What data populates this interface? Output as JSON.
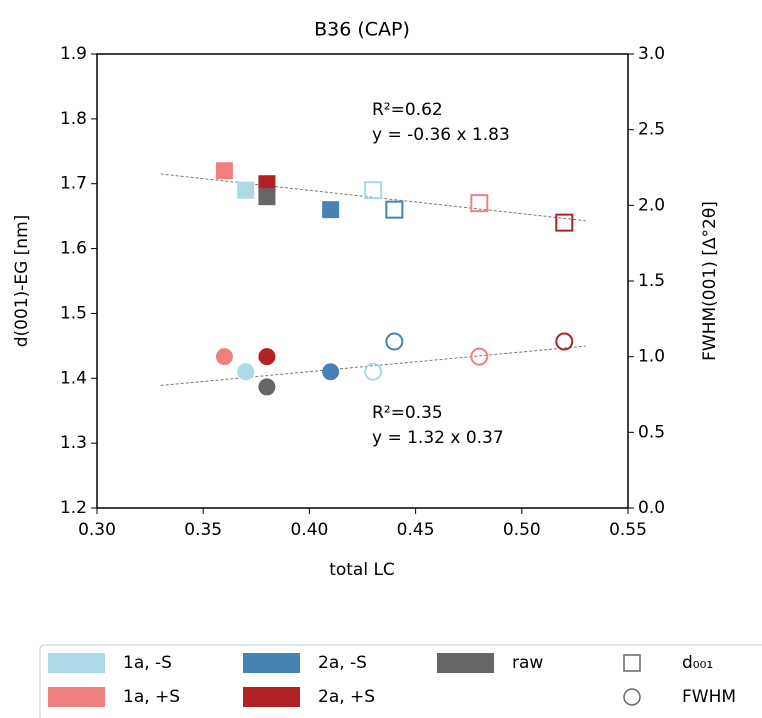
{
  "chart_data": {
    "type": "scatter",
    "title": "B36 (CAP)",
    "x_label": "total LC",
    "y_label": "d(001)-EG [nm]",
    "y2_label": "FWHM(001) [Δ°2θ]",
    "xlim": [
      0.3,
      0.55
    ],
    "xticks": [
      {
        "value": 0.3,
        "label": "0.30"
      },
      0.35,
      {
        "value": 0.4,
        "label": "0.40"
      },
      0.45,
      {
        "value": 0.5,
        "label": "0.50"
      },
      0.55
    ],
    "ylim": [
      1.2,
      1.9
    ],
    "yticks": [
      1.2,
      1.3,
      1.4,
      1.5,
      1.6,
      1.7,
      1.8,
      1.9
    ],
    "y2lim": [
      0,
      3
    ],
    "y2ticks": [
      {
        "value": 0,
        "label": "0.0"
      },
      0.5,
      {
        "value": 1,
        "label": "1.0"
      },
      1.5,
      {
        "value": 2,
        "label": "2.0"
      },
      2.5,
      {
        "value": 3,
        "label": "3.0"
      }
    ],
    "groups": [
      {
        "name": "1a, -S",
        "color": "#add8e6"
      },
      {
        "name": "1a, +S",
        "color": "#f08080"
      },
      {
        "name": "2a, -S",
        "color": "#4682b4"
      },
      {
        "name": "2a, +S",
        "color": "#b22222"
      },
      {
        "name": "raw",
        "color": "#666666"
      }
    ],
    "series": [
      {
        "name": "d₀₀₁",
        "marker": "square",
        "axis": "y",
        "x": [
          0.36,
          0.37,
          0.38,
          0.38,
          0.41,
          0.43,
          0.44,
          0.48,
          0.52
        ],
        "values": [
          1.72,
          1.69,
          1.7,
          1.68,
          1.66,
          1.69,
          1.66,
          1.67,
          1.64
        ],
        "colors": [
          "#f08080",
          "#add8e6",
          "#b22222",
          "#666666",
          "#4682b4",
          "#add8e6",
          "#4682b4",
          "#f08080",
          "#b22222"
        ],
        "filled": [
          true,
          true,
          true,
          true,
          true,
          false,
          false,
          false,
          false
        ]
      },
      {
        "name": "FWHM",
        "marker": "circle",
        "axis": "y2",
        "x": [
          0.36,
          0.37,
          0.38,
          0.38,
          0.41,
          0.43,
          0.44,
          0.48,
          0.52
        ],
        "values": [
          1.0,
          0.9,
          1.0,
          0.8,
          0.9,
          0.9,
          1.1,
          1.0,
          1.1
        ],
        "colors": [
          "#f08080",
          "#add8e6",
          "#b22222",
          "#666666",
          "#4682b4",
          "#add8e6",
          "#4682b4",
          "#f08080",
          "#b22222"
        ],
        "filled": [
          true,
          true,
          true,
          true,
          true,
          false,
          false,
          false,
          false
        ]
      }
    ],
    "trendlines": [
      {
        "axis": "y",
        "x": [
          0.33,
          0.53
        ],
        "values": [
          1.715,
          1.643
        ],
        "annotation": [
          "R²=0.62",
          "y = -0.36 x 1.83"
        ]
      },
      {
        "axis": "y2",
        "x": [
          0.33,
          0.53
        ],
        "values": [
          0.81,
          1.07
        ],
        "annotation": [
          "R²=0.35",
          "y = 1.32 x 0.37"
        ]
      }
    ]
  }
}
